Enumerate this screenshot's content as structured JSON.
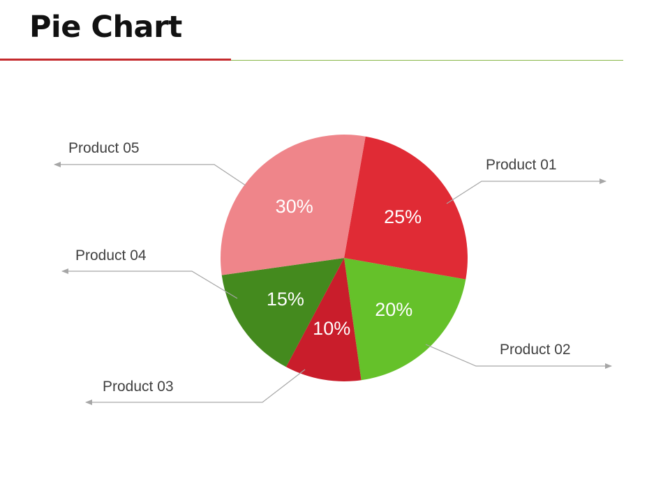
{
  "header": {
    "title": "Pie Chart"
  },
  "chart_data": {
    "type": "pie",
    "title": "",
    "start_angle_deg": 10,
    "direction": "clockwise",
    "slices": [
      {
        "label": "Product 01",
        "value": 25,
        "value_label": "25%",
        "color": "#e02b35"
      },
      {
        "label": "Product 02",
        "value": 20,
        "value_label": "20%",
        "color": "#65c12a"
      },
      {
        "label": "Product 03",
        "value": 10,
        "value_label": "10%",
        "color": "#c91d2b"
      },
      {
        "label": "Product 04",
        "value": 15,
        "value_label": "15%",
        "color": "#448a1e"
      },
      {
        "label": "Product 05",
        "value": 30,
        "value_label": "30%",
        "color": "#ef858a"
      }
    ]
  }
}
